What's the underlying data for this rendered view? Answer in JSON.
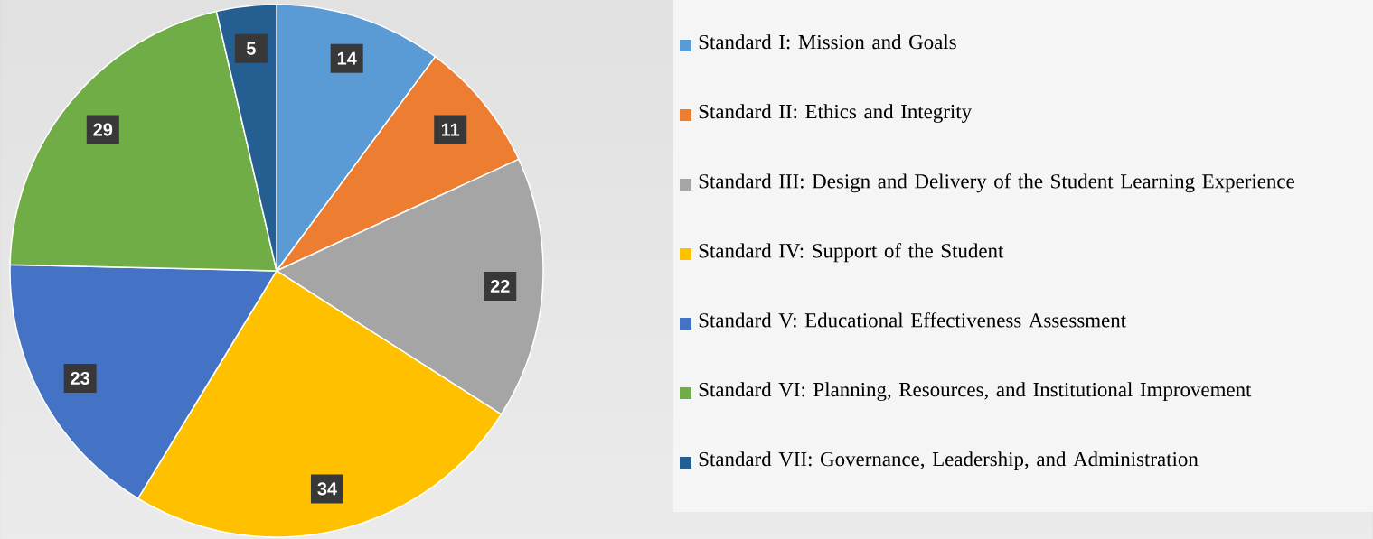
{
  "chart_data": {
    "type": "pie",
    "categories": [
      "Standard I: Mission and Goals",
      "Standard II: Ethics and Integrity",
      "Standard III: Design and Delivery of the Student Learning Experience",
      "Standard IV: Support of the Student",
      "Standard V: Educational Effectiveness Assessment",
      "Standard VI: Planning, Resources, and Institutional Improvement",
      "Standard VII: Governance, Leadership, and Administration"
    ],
    "values": [
      14,
      11,
      22,
      34,
      23,
      29,
      5
    ],
    "colors": [
      "#5b9bd5",
      "#ed7d31",
      "#a5a5a5",
      "#ffc000",
      "#4472c4",
      "#70ad47",
      "#255e91"
    ],
    "data_labels": true,
    "legend": "right"
  }
}
